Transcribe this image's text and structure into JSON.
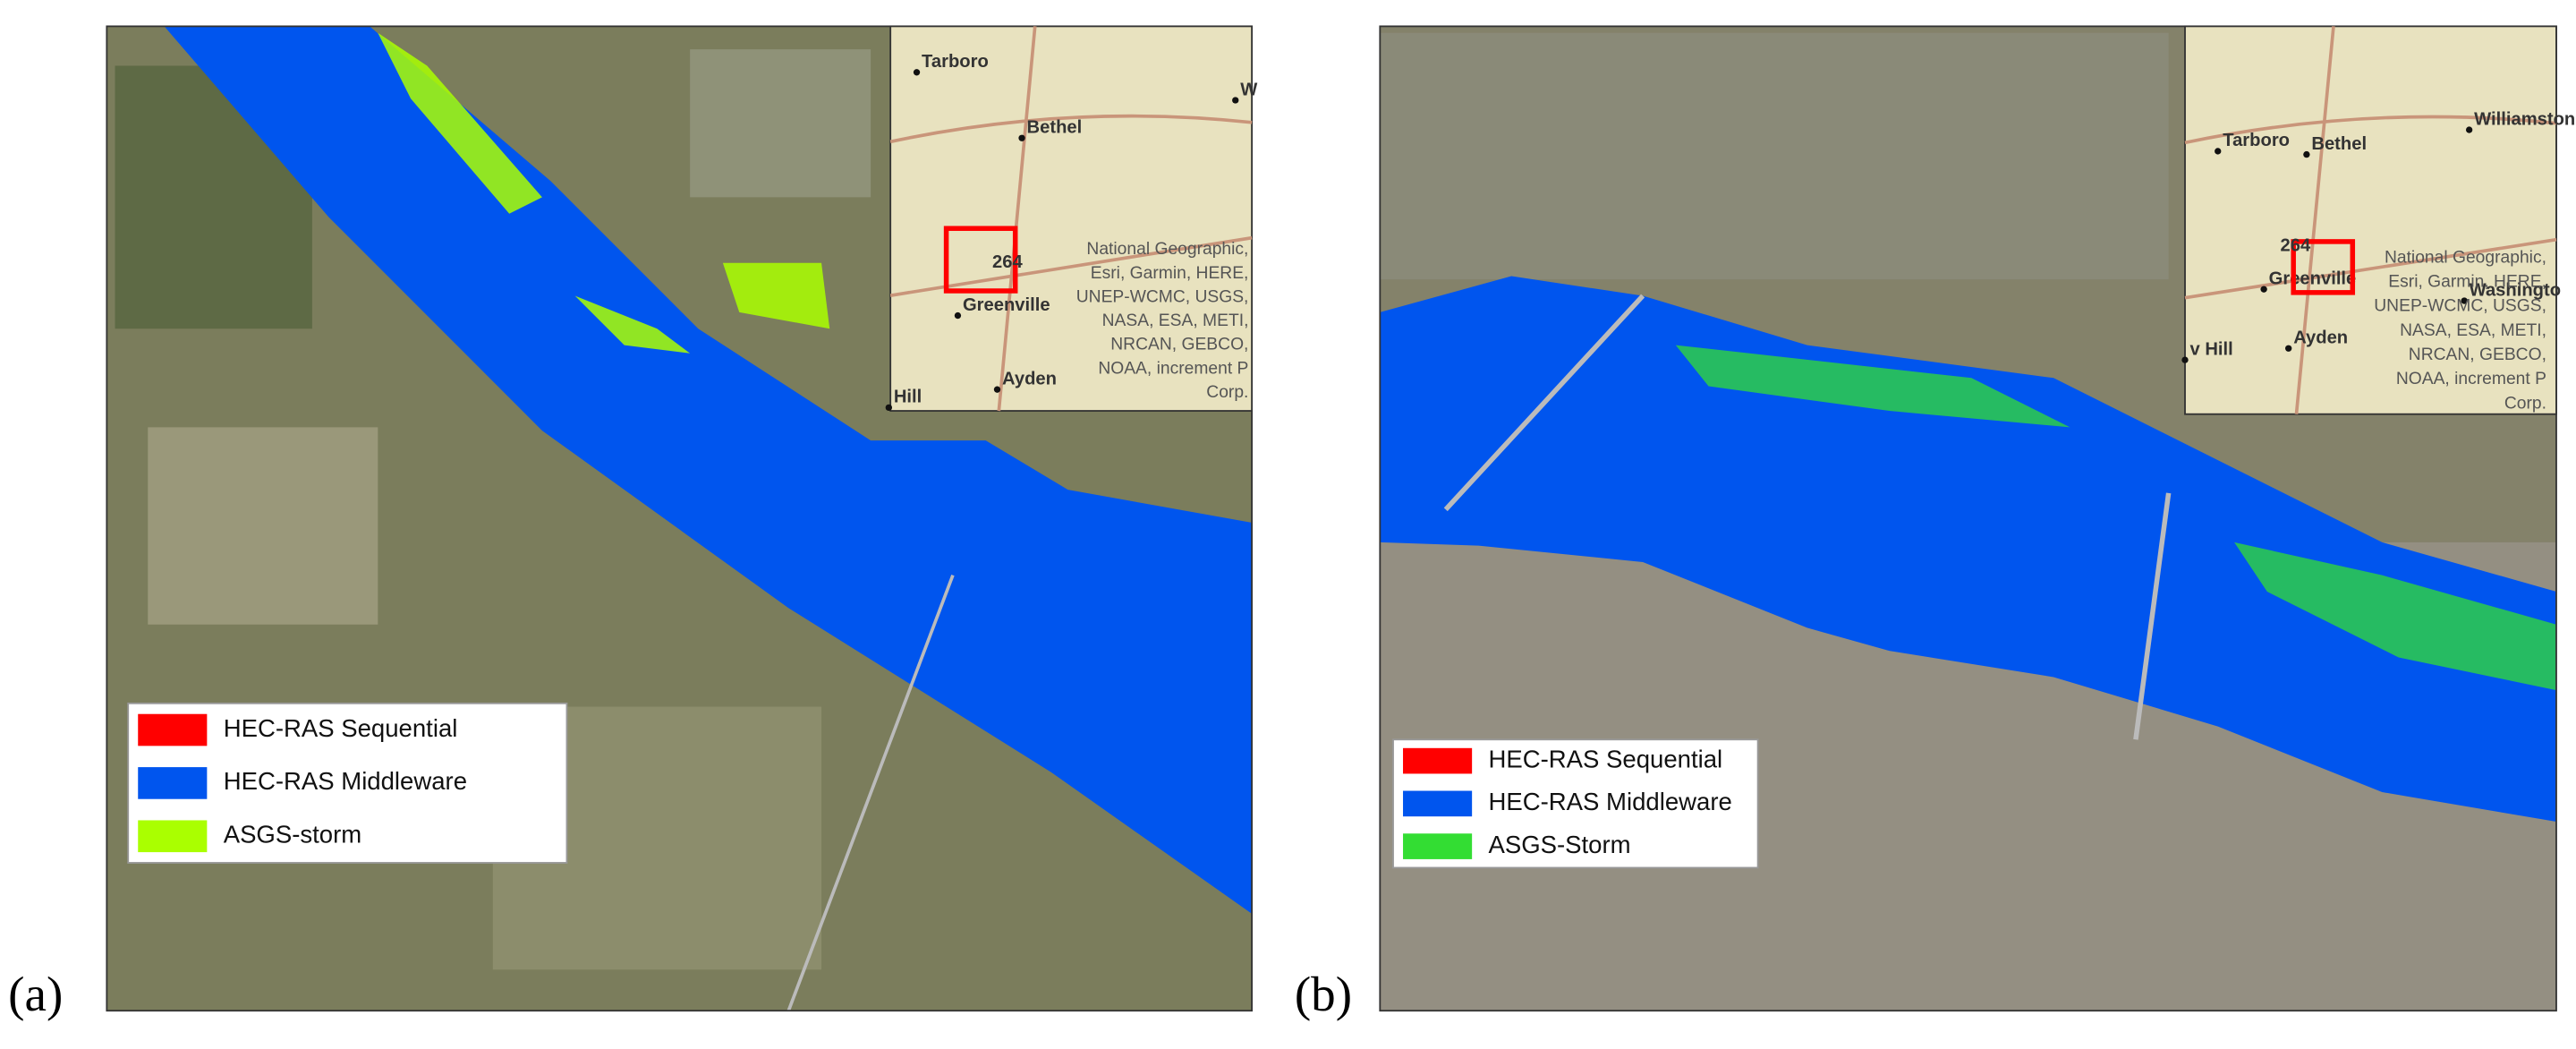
{
  "panels": [
    {
      "label": "(a)",
      "legend": [
        {
          "name": "HEC-RAS Sequential",
          "color": "#ff0000"
        },
        {
          "name": "HEC-RAS Middleware",
          "color": "#0055ee"
        },
        {
          "name": "ASGS-storm",
          "color": "#aaff00"
        }
      ],
      "inset": {
        "places": [
          "Tarboro",
          "Bethel",
          "Greenville",
          "Ayden",
          "Hill",
          "W"
        ],
        "shield": "264",
        "credit": [
          "National Geographic,",
          "Esri, Garmin, HERE,",
          "UNEP-WCMC, USGS,",
          "NASA, ESA, METI,",
          "NRCAN, GEBCO,",
          "NOAA, increment P",
          "Corp."
        ]
      }
    },
    {
      "label": "(b)",
      "legend": [
        {
          "name": "HEC-RAS Sequential",
          "color": "#ff0000"
        },
        {
          "name": "HEC-RAS Middleware",
          "color": "#0055ee"
        },
        {
          "name": "ASGS-Storm",
          "color": "#33dd33"
        }
      ],
      "inset": {
        "places": [
          "Tarboro",
          "Williamston",
          "Bethel",
          "Greenville",
          "Washingto",
          "Ayden",
          "v Hill"
        ],
        "shield": "264",
        "credit": [
          "National Geographic,",
          "Esri, Garmin, HERE,",
          "UNEP-WCMC, USGS,",
          "NASA, ESA, METI,",
          "NRCAN, GEBCO,",
          "NOAA, increment P",
          "Corp."
        ]
      }
    }
  ]
}
